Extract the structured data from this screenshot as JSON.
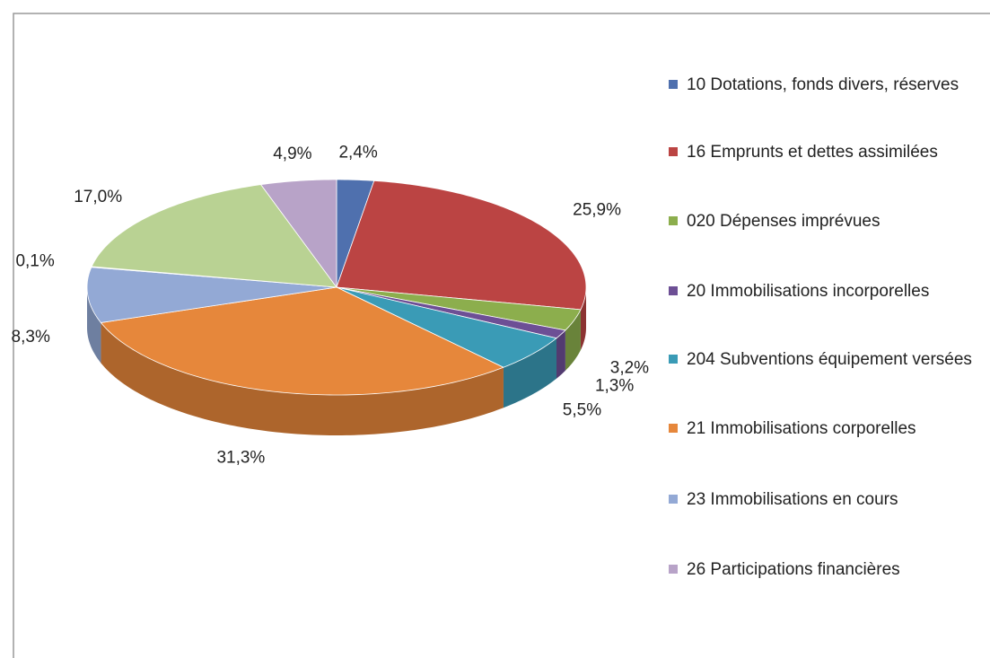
{
  "chart_data": {
    "type": "pie",
    "categories": [
      "10 Dotations, fonds divers, réserves",
      "16 Emprunts et dettes assimilées",
      "020 Dépenses imprévues",
      "20 Immobilisations incorporelles",
      "204 Subventions équipement versées",
      "21 Immobilisations corporelles",
      "23 Immobilisations en cours",
      null,
      null,
      "26 Participations financières"
    ],
    "values": [
      2.4,
      25.9,
      3.2,
      1.3,
      5.5,
      31.3,
      8.3,
      0.1,
      17.0,
      4.9
    ],
    "value_labels": [
      "2,4%",
      "25,9%",
      "3,2%",
      "1,3%",
      "5,5%",
      "31,3%",
      "8,3%",
      "0,1%",
      "17,0%",
      "4,9%"
    ],
    "colors": [
      "#4f70ae",
      "#bb4443",
      "#8cae4d",
      "#6d4f95",
      "#3a9bb6",
      "#e6873b",
      "#93a9d5",
      "#bcbcbc",
      "#b9d293",
      "#b8a3c8"
    ],
    "legend": "right"
  }
}
